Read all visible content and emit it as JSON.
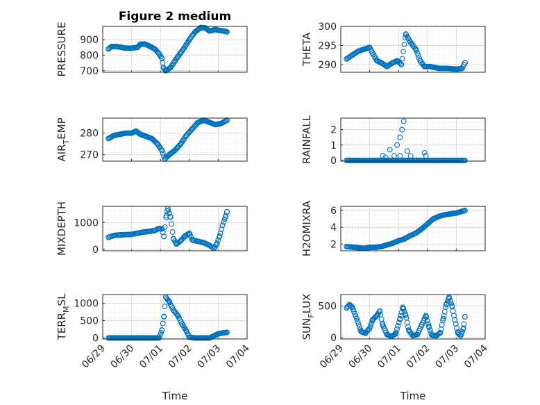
{
  "figure": {
    "title": "Figure 2 medium",
    "xlabel": "Time"
  },
  "style": {
    "marker_color": "#0072BD",
    "grid_color": "#dcdcdc",
    "axis_color": "#262626"
  },
  "chart_data": [
    {
      "type": "scatter",
      "ylabel": "PRESSURE",
      "yticks": [
        700,
        800,
        900
      ],
      "ylim": [
        690,
        985
      ],
      "xticks": [
        "06/29",
        "06/30",
        "07/01",
        "07/02",
        "07/03",
        "07/04"
      ],
      "xlim": [
        0,
        5
      ],
      "anchors": [
        [
          0.2,
          840
        ],
        [
          0.3,
          855
        ],
        [
          0.5,
          855
        ],
        [
          0.8,
          845
        ],
        [
          1.0,
          845
        ],
        [
          1.2,
          850
        ],
        [
          1.3,
          870
        ],
        [
          1.45,
          872
        ],
        [
          1.6,
          860
        ],
        [
          1.8,
          840
        ],
        [
          1.95,
          810
        ],
        [
          2.05,
          780
        ],
        [
          2.1,
          720
        ],
        [
          2.18,
          700
        ],
        [
          2.35,
          720
        ],
        [
          2.6,
          790
        ],
        [
          2.8,
          840
        ],
        [
          3.0,
          900
        ],
        [
          3.2,
          950
        ],
        [
          3.4,
          978
        ],
        [
          3.55,
          975
        ],
        [
          3.7,
          955
        ],
        [
          3.8,
          960
        ],
        [
          3.9,
          965
        ],
        [
          4.0,
          960
        ],
        [
          4.2,
          955
        ],
        [
          4.3,
          950
        ]
      ],
      "n": 130
    },
    {
      "type": "scatter",
      "ylabel": "THETA",
      "yticks": [
        290,
        295,
        300
      ],
      "ylim": [
        288,
        300
      ],
      "xticks": [
        "06/29",
        "06/30",
        "07/01",
        "07/02",
        "07/03",
        "07/04"
      ],
      "xlim": [
        0,
        5
      ],
      "anchors": [
        [
          0.2,
          291.5
        ],
        [
          0.4,
          292.5
        ],
        [
          0.6,
          293.5
        ],
        [
          0.8,
          294
        ],
        [
          1.0,
          294.5
        ],
        [
          1.1,
          293
        ],
        [
          1.25,
          291
        ],
        [
          1.4,
          290.5
        ],
        [
          1.6,
          289.5
        ],
        [
          1.8,
          290.5
        ],
        [
          1.95,
          291
        ],
        [
          2.1,
          290
        ],
        [
          2.25,
          298
        ],
        [
          2.4,
          296
        ],
        [
          2.6,
          294
        ],
        [
          2.75,
          291
        ],
        [
          2.9,
          289.5
        ],
        [
          3.1,
          289.5
        ],
        [
          3.4,
          289
        ],
        [
          3.7,
          289
        ],
        [
          4.0,
          288.8
        ],
        [
          4.2,
          289
        ],
        [
          4.3,
          290.5
        ]
      ],
      "n": 120
    },
    {
      "type": "scatter",
      "ylabel": "AIR_TEMP",
      "ylabel_main": "AIR",
      "ylabel_sub": "T",
      "ylabel_rest": "EMP",
      "yticks": [
        270,
        280
      ],
      "ylim": [
        267,
        287
      ],
      "xticks": [
        "06/29",
        "06/30",
        "07/01",
        "07/02",
        "07/03",
        "07/04"
      ],
      "xlim": [
        0,
        5
      ],
      "anchors": [
        [
          0.2,
          277.5
        ],
        [
          0.4,
          279
        ],
        [
          0.6,
          279.5
        ],
        [
          0.8,
          280
        ],
        [
          1.0,
          280
        ],
        [
          1.15,
          281
        ],
        [
          1.3,
          279.5
        ],
        [
          1.5,
          278.5
        ],
        [
          1.7,
          277.5
        ],
        [
          1.9,
          275
        ],
        [
          2.05,
          272
        ],
        [
          2.15,
          268
        ],
        [
          2.3,
          270
        ],
        [
          2.5,
          272
        ],
        [
          2.7,
          275
        ],
        [
          2.9,
          279
        ],
        [
          3.1,
          282
        ],
        [
          3.3,
          285
        ],
        [
          3.5,
          286
        ],
        [
          3.7,
          285
        ],
        [
          3.9,
          284
        ],
        [
          4.1,
          284.5
        ],
        [
          4.3,
          286
        ]
      ],
      "n": 125
    },
    {
      "type": "scatter",
      "ylabel": "RAINFALL",
      "yticks": [
        0,
        1,
        2
      ],
      "ylim": [
        -0.05,
        2.75
      ],
      "xticks": [
        "06/29",
        "06/30",
        "07/01",
        "07/02",
        "07/03",
        "07/04"
      ],
      "xlim": [
        0,
        5
      ],
      "points": [
        [
          1.45,
          0.3
        ],
        [
          1.55,
          0.2
        ],
        [
          1.7,
          0.7
        ],
        [
          1.85,
          0.3
        ],
        [
          1.95,
          1.0
        ],
        [
          2.05,
          1.5
        ],
        [
          2.12,
          2.0
        ],
        [
          2.18,
          2.55
        ],
        [
          2.05,
          0.3
        ],
        [
          2.3,
          0.6
        ],
        [
          2.42,
          0.3
        ],
        [
          2.9,
          0.5
        ],
        [
          2.95,
          0.3
        ]
      ],
      "baseline": {
        "y": 0,
        "x_from": 0.2,
        "x_to": 4.3,
        "n": 115
      }
    },
    {
      "type": "scatter",
      "ylabel": "MIXDEPTH",
      "yticks": [
        0,
        1000
      ],
      "ylim": [
        -50,
        1600
      ],
      "xticks": [
        "06/29",
        "06/30",
        "07/01",
        "07/02",
        "07/03",
        "07/04"
      ],
      "xlim": [
        0,
        5
      ],
      "anchors": [
        [
          0.2,
          450
        ],
        [
          0.4,
          520
        ],
        [
          0.6,
          540
        ],
        [
          0.8,
          550
        ],
        [
          1.0,
          560
        ],
        [
          1.2,
          600
        ],
        [
          1.4,
          640
        ],
        [
          1.6,
          670
        ],
        [
          1.8,
          700
        ],
        [
          1.95,
          780
        ],
        [
          2.05,
          760
        ],
        [
          2.12,
          480
        ],
        [
          2.2,
          1250
        ],
        [
          2.25,
          1520
        ],
        [
          2.35,
          1200
        ],
        [
          2.45,
          400
        ],
        [
          2.55,
          200
        ],
        [
          2.7,
          320
        ],
        [
          2.85,
          500
        ],
        [
          3.0,
          600
        ],
        [
          3.1,
          350
        ],
        [
          3.3,
          300
        ],
        [
          3.5,
          250
        ],
        [
          3.7,
          150
        ],
        [
          3.85,
          40
        ],
        [
          3.95,
          200
        ],
        [
          4.05,
          500
        ],
        [
          4.15,
          900
        ],
        [
          4.25,
          1200
        ],
        [
          4.3,
          1400
        ]
      ],
      "n": 110
    },
    {
      "type": "scatter",
      "ylabel": "H2OMIXRA",
      "yticks": [
        2,
        4,
        6
      ],
      "ylim": [
        1.2,
        6.5
      ],
      "xticks": [
        "06/29",
        "06/30",
        "07/01",
        "07/02",
        "07/03",
        "07/04"
      ],
      "xlim": [
        0,
        5
      ],
      "anchors": [
        [
          0.2,
          1.7
        ],
        [
          0.5,
          1.6
        ],
        [
          0.8,
          1.5
        ],
        [
          1.0,
          1.6
        ],
        [
          1.2,
          1.6
        ],
        [
          1.4,
          1.7
        ],
        [
          1.6,
          1.9
        ],
        [
          1.8,
          2.1
        ],
        [
          2.0,
          2.4
        ],
        [
          2.2,
          2.6
        ],
        [
          2.4,
          3.0
        ],
        [
          2.6,
          3.3
        ],
        [
          2.8,
          3.8
        ],
        [
          3.0,
          4.4
        ],
        [
          3.2,
          5.0
        ],
        [
          3.4,
          5.3
        ],
        [
          3.6,
          5.5
        ],
        [
          3.8,
          5.6
        ],
        [
          4.0,
          5.7
        ],
        [
          4.2,
          5.9
        ],
        [
          4.3,
          6.0
        ]
      ],
      "n": 120
    },
    {
      "type": "scatter",
      "ylabel": "TERR_MSL",
      "ylabel_main": "TERR",
      "ylabel_sub": "M",
      "ylabel_rest": "SL",
      "yticks": [
        0,
        500,
        1000
      ],
      "ylim": [
        -30,
        1250
      ],
      "xticks": [
        "06/29",
        "06/30",
        "07/01",
        "07/02",
        "07/03",
        "07/04"
      ],
      "xlim": [
        0,
        5
      ],
      "anchors": [
        [
          0.2,
          0
        ],
        [
          0.5,
          0
        ],
        [
          0.8,
          0
        ],
        [
          1.1,
          0
        ],
        [
          1.4,
          0
        ],
        [
          1.7,
          0
        ],
        [
          1.95,
          0
        ],
        [
          2.05,
          220
        ],
        [
          2.12,
          620
        ],
        [
          2.18,
          1180
        ],
        [
          2.3,
          1050
        ],
        [
          2.45,
          800
        ],
        [
          2.6,
          650
        ],
        [
          2.75,
          400
        ],
        [
          2.9,
          200
        ],
        [
          3.0,
          20
        ],
        [
          3.2,
          0
        ],
        [
          3.5,
          0
        ],
        [
          3.7,
          0
        ],
        [
          3.85,
          60
        ],
        [
          4.0,
          120
        ],
        [
          4.2,
          150
        ],
        [
          4.3,
          160
        ]
      ],
      "n": 125
    },
    {
      "type": "scatter",
      "ylabel": "SUN_FLUX",
      "ylabel_main": "SUN",
      "ylabel_sub": "F",
      "ylabel_rest": "LUX",
      "yticks": [
        0,
        500
      ],
      "ylim": [
        -20,
        680
      ],
      "xticks": [
        "06/29",
        "06/30",
        "07/01",
        "07/02",
        "07/03",
        "07/04"
      ],
      "xlim": [
        0,
        5
      ],
      "anchors": [
        [
          0.2,
          470
        ],
        [
          0.3,
          520
        ],
        [
          0.4,
          480
        ],
        [
          0.55,
          300
        ],
        [
          0.7,
          100
        ],
        [
          0.85,
          70
        ],
        [
          1.0,
          150
        ],
        [
          1.1,
          280
        ],
        [
          1.25,
          350
        ],
        [
          1.35,
          420
        ],
        [
          1.45,
          200
        ],
        [
          1.6,
          50
        ],
        [
          1.75,
          20
        ],
        [
          1.9,
          60
        ],
        [
          2.05,
          300
        ],
        [
          2.15,
          480
        ],
        [
          2.25,
          350
        ],
        [
          2.35,
          120
        ],
        [
          2.5,
          30
        ],
        [
          2.65,
          50
        ],
        [
          2.8,
          200
        ],
        [
          2.95,
          350
        ],
        [
          3.05,
          180
        ],
        [
          3.15,
          40
        ],
        [
          3.3,
          30
        ],
        [
          3.45,
          80
        ],
        [
          3.55,
          300
        ],
        [
          3.65,
          520
        ],
        [
          3.75,
          640
        ],
        [
          3.85,
          500
        ],
        [
          3.95,
          280
        ],
        [
          4.05,
          80
        ],
        [
          4.15,
          30
        ],
        [
          4.25,
          150
        ],
        [
          4.3,
          330
        ]
      ],
      "n": 130
    }
  ]
}
